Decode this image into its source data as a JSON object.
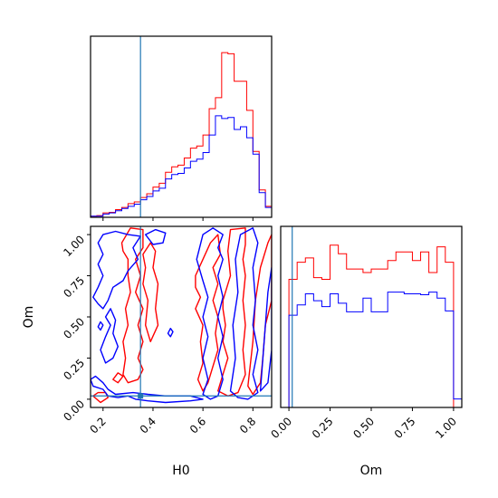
{
  "chart_data": {
    "type": "corner",
    "colors": {
      "series_a": "#ff0000",
      "series_b": "#0000ff",
      "truth": "#1f77b4"
    },
    "truth": {
      "H0": 0.35,
      "Om": 0.02
    },
    "parameters": [
      "H0",
      "Om"
    ],
    "axes": {
      "H0": {
        "range": [
          0.15,
          0.875
        ],
        "ticks": [
          "0.2",
          "0.4",
          "0.6",
          "0.8"
        ],
        "tick_values": [
          0.2,
          0.4,
          0.6,
          0.8
        ],
        "label": "H0"
      },
      "Om": {
        "range": [
          -0.05,
          1.05
        ],
        "ticks": [
          "0.00",
          "0.25",
          "0.50",
          "0.75",
          "1.00"
        ],
        "tick_values": [
          0.0,
          0.25,
          0.5,
          0.75,
          1.0
        ],
        "label": "Om"
      }
    },
    "hist_H0": {
      "bin_edges": [
        0.15,
        0.175,
        0.2,
        0.225,
        0.25,
        0.275,
        0.3,
        0.325,
        0.35,
        0.375,
        0.4,
        0.425,
        0.45,
        0.475,
        0.5,
        0.525,
        0.55,
        0.575,
        0.6,
        0.625,
        0.65,
        0.675,
        0.7,
        0.725,
        0.75,
        0.775,
        0.8,
        0.825,
        0.85,
        0.875
      ],
      "series": [
        {
          "name": "",
          "color_key": "series_a",
          "values": [
            2,
            3,
            8,
            9,
            14,
            18,
            25,
            28,
            36,
            43,
            55,
            62,
            82,
            92,
            95,
            108,
            126,
            130,
            150,
            198,
            218,
            300,
            298,
            248,
            248,
            195,
            120,
            50,
            20
          ]
        },
        {
          "name": "",
          "color_key": "series_b",
          "values": [
            2,
            2,
            6,
            8,
            12,
            16,
            20,
            24,
            32,
            38,
            48,
            53,
            70,
            78,
            80,
            90,
            102,
            106,
            118,
            150,
            185,
            180,
            182,
            160,
            165,
            145,
            115,
            45,
            18
          ]
        }
      ],
      "ymax": 330
    },
    "hist_Om": {
      "bin_edges": [
        -0.05,
        0.0,
        0.05,
        0.1,
        0.15,
        0.2,
        0.25,
        0.3,
        0.35,
        0.4,
        0.45,
        0.5,
        0.55,
        0.6,
        0.65,
        0.7,
        0.75,
        0.8,
        0.85,
        0.9,
        0.95,
        1.0,
        1.05
      ],
      "series": [
        {
          "name": "",
          "color_key": "series_a",
          "values": [
            0,
            150,
            170,
            175,
            152,
            150,
            190,
            180,
            162,
            162,
            158,
            162,
            162,
            172,
            182,
            182,
            172,
            182,
            158,
            188,
            170,
            0
          ]
        },
        {
          "name": "",
          "color_key": "series_b",
          "values": [
            0,
            108,
            120,
            133,
            125,
            118,
            133,
            122,
            112,
            112,
            128,
            112,
            112,
            135,
            135,
            133,
            133,
            132,
            135,
            128,
            113,
            10
          ]
        }
      ],
      "ymax": 212
    },
    "contours": [
      {
        "color_key": "series_a",
        "points": [
          [
            0.275,
            0.95
          ],
          [
            0.31,
            1.04
          ],
          [
            0.36,
            1.03
          ],
          [
            0.36,
            0.92
          ],
          [
            0.33,
            0.85
          ],
          [
            0.35,
            0.75
          ],
          [
            0.33,
            0.65
          ],
          [
            0.36,
            0.55
          ],
          [
            0.34,
            0.45
          ],
          [
            0.36,
            0.35
          ],
          [
            0.34,
            0.25
          ],
          [
            0.36,
            0.18
          ],
          [
            0.34,
            0.12
          ],
          [
            0.3,
            0.1
          ],
          [
            0.28,
            0.15
          ],
          [
            0.29,
            0.25
          ],
          [
            0.28,
            0.35
          ],
          [
            0.3,
            0.45
          ],
          [
            0.29,
            0.55
          ],
          [
            0.31,
            0.65
          ],
          [
            0.3,
            0.75
          ],
          [
            0.3,
            0.85
          ],
          [
            0.28,
            0.9
          ],
          [
            0.275,
            0.95
          ]
        ]
      },
      {
        "color_key": "series_a",
        "points": [
          [
            0.36,
            0.88
          ],
          [
            0.39,
            0.95
          ],
          [
            0.41,
            0.9
          ],
          [
            0.4,
            0.8
          ],
          [
            0.42,
            0.7
          ],
          [
            0.41,
            0.55
          ],
          [
            0.42,
            0.45
          ],
          [
            0.39,
            0.35
          ],
          [
            0.37,
            0.45
          ],
          [
            0.38,
            0.6
          ],
          [
            0.36,
            0.7
          ],
          [
            0.37,
            0.8
          ],
          [
            0.36,
            0.88
          ]
        ]
      },
      {
        "color_key": "series_a",
        "points": [
          [
            0.57,
            0.75
          ],
          [
            0.6,
            0.85
          ],
          [
            0.63,
            0.95
          ],
          [
            0.66,
            1.0
          ],
          [
            0.67,
            0.88
          ],
          [
            0.64,
            0.8
          ],
          [
            0.66,
            0.7
          ],
          [
            0.64,
            0.6
          ],
          [
            0.66,
            0.5
          ],
          [
            0.65,
            0.4
          ],
          [
            0.66,
            0.3
          ],
          [
            0.64,
            0.2
          ],
          [
            0.62,
            0.1
          ],
          [
            0.6,
            0.05
          ],
          [
            0.58,
            0.12
          ],
          [
            0.6,
            0.22
          ],
          [
            0.59,
            0.35
          ],
          [
            0.6,
            0.45
          ],
          [
            0.57,
            0.55
          ],
          [
            0.59,
            0.62
          ],
          [
            0.57,
            0.68
          ],
          [
            0.57,
            0.75
          ]
        ]
      },
      {
        "color_key": "series_a",
        "points": [
          [
            0.68,
            0.6
          ],
          [
            0.71,
            0.75
          ],
          [
            0.7,
            0.9
          ],
          [
            0.71,
            1.03
          ],
          [
            0.77,
            1.04
          ],
          [
            0.77,
            0.94
          ],
          [
            0.76,
            0.85
          ],
          [
            0.77,
            0.75
          ],
          [
            0.76,
            0.6
          ],
          [
            0.77,
            0.45
          ],
          [
            0.76,
            0.3
          ],
          [
            0.77,
            0.15
          ],
          [
            0.74,
            0.04
          ],
          [
            0.7,
            0.02
          ],
          [
            0.66,
            0.05
          ],
          [
            0.68,
            0.15
          ],
          [
            0.7,
            0.25
          ],
          [
            0.68,
            0.35
          ],
          [
            0.69,
            0.45
          ],
          [
            0.68,
            0.55
          ],
          [
            0.68,
            0.6
          ]
        ]
      },
      {
        "color_key": "series_a",
        "points": [
          [
            0.78,
            0.08
          ],
          [
            0.8,
            0.35
          ],
          [
            0.81,
            0.6
          ],
          [
            0.83,
            0.8
          ],
          [
            0.86,
            0.95
          ],
          [
            0.875,
            1.0
          ],
          [
            0.875,
            0.6
          ],
          [
            0.85,
            0.45
          ],
          [
            0.84,
            0.25
          ],
          [
            0.83,
            0.1
          ],
          [
            0.8,
            0.03
          ],
          [
            0.78,
            0.08
          ]
        ]
      },
      {
        "color_key": "series_a",
        "points": [
          [
            0.16,
            0.02
          ],
          [
            0.18,
            0.04
          ],
          [
            0.21,
            0.04
          ],
          [
            0.22,
            0.01
          ],
          [
            0.19,
            -0.02
          ],
          [
            0.16,
            0.02
          ]
        ]
      },
      {
        "color_key": "series_a",
        "points": [
          [
            0.24,
            0.12
          ],
          [
            0.26,
            0.16
          ],
          [
            0.28,
            0.14
          ],
          [
            0.26,
            0.1
          ],
          [
            0.24,
            0.12
          ]
        ]
      },
      {
        "color_key": "series_b",
        "points": [
          [
            0.16,
            0.62
          ],
          [
            0.18,
            0.68
          ],
          [
            0.2,
            0.75
          ],
          [
            0.18,
            0.82
          ],
          [
            0.2,
            0.88
          ],
          [
            0.18,
            0.95
          ],
          [
            0.2,
            1.0
          ],
          [
            0.25,
            1.02
          ],
          [
            0.3,
            1.0
          ],
          [
            0.35,
            0.99
          ],
          [
            0.32,
            0.92
          ],
          [
            0.34,
            0.85
          ],
          [
            0.3,
            0.78
          ],
          [
            0.28,
            0.72
          ],
          [
            0.24,
            0.68
          ],
          [
            0.22,
            0.6
          ],
          [
            0.2,
            0.55
          ],
          [
            0.18,
            0.58
          ],
          [
            0.16,
            0.62
          ]
        ]
      },
      {
        "color_key": "series_b",
        "points": [
          [
            0.37,
            1.0
          ],
          [
            0.41,
            1.03
          ],
          [
            0.45,
            1.01
          ],
          [
            0.44,
            0.95
          ],
          [
            0.4,
            0.94
          ],
          [
            0.37,
            1.0
          ]
        ]
      },
      {
        "color_key": "series_b",
        "points": [
          [
            0.15,
            0.12
          ],
          [
            0.16,
            0.08
          ],
          [
            0.2,
            0.06
          ],
          [
            0.22,
            0.02
          ],
          [
            0.26,
            0.01
          ],
          [
            0.3,
            0.02
          ],
          [
            0.33,
            0.0
          ],
          [
            0.38,
            -0.01
          ],
          [
            0.45,
            -0.02
          ],
          [
            0.55,
            -0.01
          ],
          [
            0.6,
            0.0
          ],
          [
            0.55,
            0.02
          ],
          [
            0.45,
            0.02
          ],
          [
            0.38,
            0.03
          ],
          [
            0.32,
            0.04
          ],
          [
            0.25,
            0.03
          ],
          [
            0.22,
            0.06
          ],
          [
            0.2,
            0.1
          ],
          [
            0.17,
            0.14
          ],
          [
            0.15,
            0.12
          ]
        ]
      },
      {
        "color_key": "series_b",
        "points": [
          [
            0.19,
            0.3
          ],
          [
            0.21,
            0.38
          ],
          [
            0.23,
            0.45
          ],
          [
            0.21,
            0.5
          ],
          [
            0.23,
            0.55
          ],
          [
            0.25,
            0.48
          ],
          [
            0.24,
            0.4
          ],
          [
            0.26,
            0.32
          ],
          [
            0.24,
            0.25
          ],
          [
            0.21,
            0.22
          ],
          [
            0.19,
            0.3
          ]
        ]
      },
      {
        "color_key": "series_b",
        "points": [
          [
            0.575,
            0.85
          ],
          [
            0.6,
            1.0
          ],
          [
            0.64,
            1.04
          ],
          [
            0.68,
            1.0
          ],
          [
            0.66,
            0.92
          ],
          [
            0.68,
            0.85
          ],
          [
            0.66,
            0.75
          ],
          [
            0.68,
            0.62
          ],
          [
            0.66,
            0.5
          ],
          [
            0.68,
            0.38
          ],
          [
            0.66,
            0.25
          ],
          [
            0.68,
            0.12
          ],
          [
            0.66,
            0.02
          ],
          [
            0.63,
            0.0
          ],
          [
            0.6,
            0.03
          ],
          [
            0.62,
            0.12
          ],
          [
            0.6,
            0.25
          ],
          [
            0.62,
            0.38
          ],
          [
            0.6,
            0.5
          ],
          [
            0.62,
            0.62
          ],
          [
            0.6,
            0.72
          ],
          [
            0.575,
            0.85
          ]
        ]
      },
      {
        "color_key": "series_b",
        "points": [
          [
            0.71,
            0.05
          ],
          [
            0.73,
            0.25
          ],
          [
            0.72,
            0.45
          ],
          [
            0.74,
            0.65
          ],
          [
            0.73,
            0.85
          ],
          [
            0.75,
            1.0
          ],
          [
            0.8,
            1.04
          ],
          [
            0.82,
            0.95
          ],
          [
            0.8,
            0.8
          ],
          [
            0.81,
            0.6
          ],
          [
            0.8,
            0.45
          ],
          [
            0.82,
            0.3
          ],
          [
            0.8,
            0.15
          ],
          [
            0.82,
            0.04
          ],
          [
            0.78,
            0.0
          ],
          [
            0.74,
            0.01
          ],
          [
            0.71,
            0.05
          ]
        ]
      },
      {
        "color_key": "series_b",
        "points": [
          [
            0.83,
            0.05
          ],
          [
            0.845,
            0.35
          ],
          [
            0.86,
            0.65
          ],
          [
            0.875,
            0.8
          ],
          [
            0.875,
            0.3
          ],
          [
            0.86,
            0.1
          ],
          [
            0.83,
            0.05
          ]
        ]
      },
      {
        "color_key": "series_b",
        "points": [
          [
            0.46,
            0.4
          ],
          [
            0.47,
            0.43
          ],
          [
            0.48,
            0.41
          ],
          [
            0.47,
            0.38
          ],
          [
            0.46,
            0.4
          ]
        ]
      },
      {
        "color_key": "series_b",
        "points": [
          [
            0.18,
            0.44
          ],
          [
            0.19,
            0.47
          ],
          [
            0.2,
            0.45
          ],
          [
            0.19,
            0.42
          ],
          [
            0.18,
            0.44
          ]
        ]
      }
    ]
  }
}
